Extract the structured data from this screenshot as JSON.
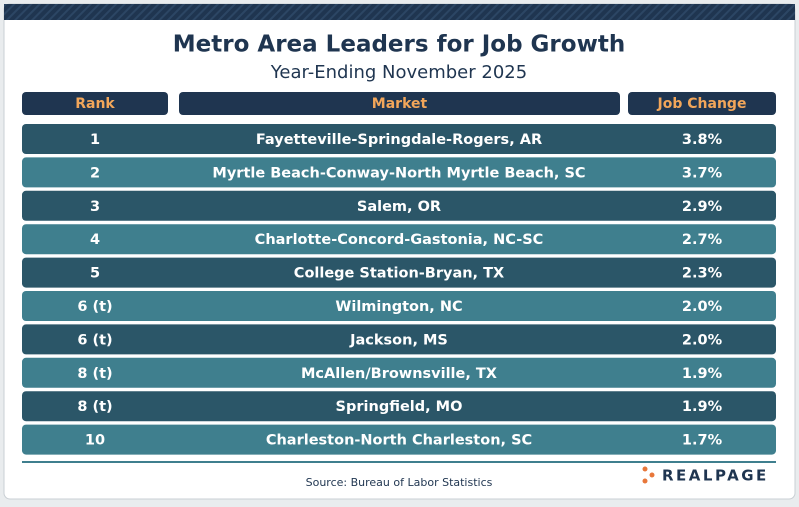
{
  "header": {
    "title": "Metro Area Leaders for Job Growth",
    "subtitle": "Year-Ending November 2025"
  },
  "table": {
    "columns": [
      "Rank",
      "Market",
      "Job Change"
    ],
    "rows": [
      [
        "1",
        "Fayetteville-Springdale-Rogers, AR",
        "3.8%"
      ],
      [
        "2",
        "Myrtle Beach-Conway-North Myrtle Beach, SC",
        "3.7%"
      ],
      [
        "3",
        "Salem, OR",
        "2.9%"
      ],
      [
        "4",
        "Charlotte-Concord-Gastonia, NC-SC",
        "2.7%"
      ],
      [
        "5",
        "College Station-Bryan, TX",
        "2.3%"
      ],
      [
        "6 (t)",
        "Wilmington, NC",
        "2.0%"
      ],
      [
        "6 (t)",
        "Jackson, MS",
        "2.0%"
      ],
      [
        "8 (t)",
        "McAllen/Brownsville, TX",
        "1.9%"
      ],
      [
        "8 (t)",
        "Springfield, MO",
        "1.9%"
      ],
      [
        "10",
        "Charleston-North Charleston, SC",
        "1.7%"
      ]
    ]
  },
  "footer": {
    "source": "Source: Bureau of Labor Statistics",
    "logo": "REALPAGE"
  }
}
